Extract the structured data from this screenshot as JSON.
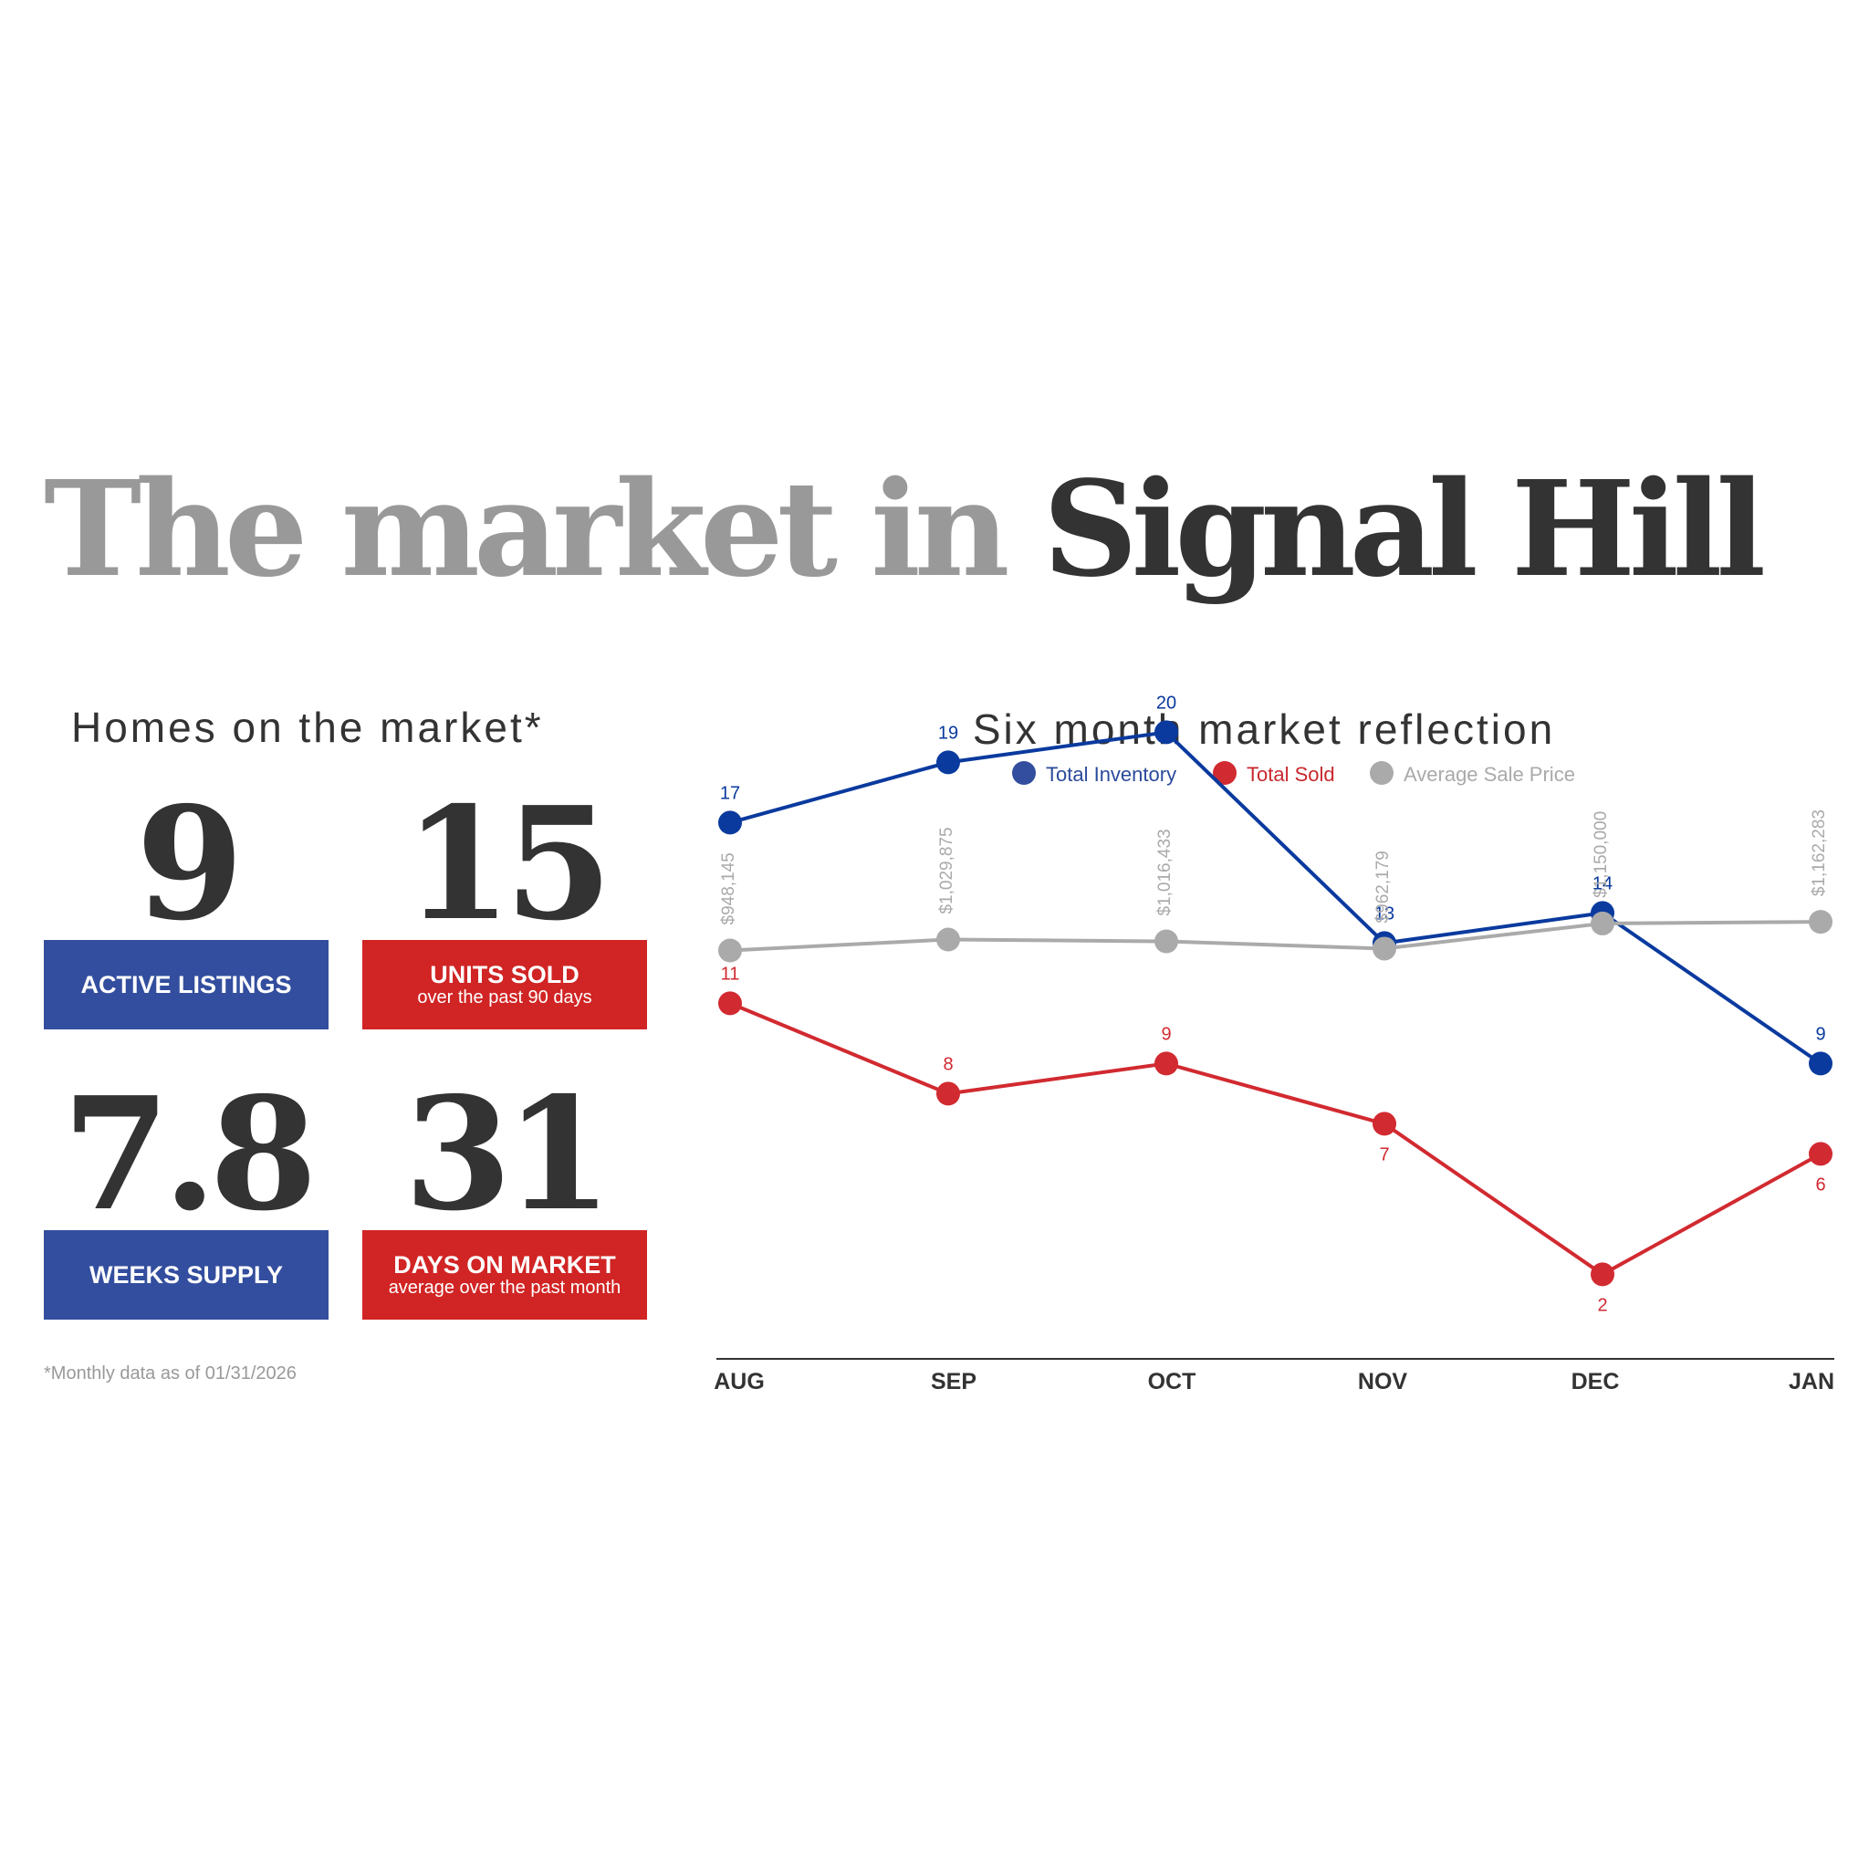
{
  "title": {
    "prefix": "The market in ",
    "place": "Signal Hill"
  },
  "homes": {
    "heading": "Homes on the market*",
    "stats": [
      {
        "value": "9",
        "label": "ACTIVE LISTINGS",
        "sub": "",
        "color": "#334e9e"
      },
      {
        "value": "15",
        "label": "UNITS SOLD",
        "sub": "over the past 90 days",
        "color": "#d12424"
      },
      {
        "value": "7.8",
        "label": "WEEKS SUPPLY",
        "sub": "",
        "color": "#334e9e"
      },
      {
        "value": "31",
        "label": "DAYS ON MARKET",
        "sub": "average over the past month",
        "color": "#d12424"
      }
    ],
    "footnote": "*Monthly data as of 01/31/2026"
  },
  "chart_data": {
    "type": "line",
    "title": "Six month market reflection",
    "categories": [
      "AUG",
      "SEP",
      "OCT",
      "NOV",
      "DEC",
      "JAN"
    ],
    "legend_position": "top",
    "grid": false,
    "series": [
      {
        "name": "Total Inventory",
        "color": "#0a3a9e",
        "values": [
          17,
          19,
          20,
          13,
          14,
          9
        ],
        "labels": [
          "17",
          "19",
          "20",
          "13",
          "14",
          "9"
        ]
      },
      {
        "name": "Total Sold",
        "color": "#d12a30",
        "values": [
          11,
          8,
          9,
          7,
          2,
          6
        ],
        "labels": [
          "11",
          "8",
          "9",
          "7",
          "2",
          "6"
        ]
      },
      {
        "name": "Average Sale Price",
        "color": "#aaaaaa",
        "values": [
          948145,
          1029875,
          1016433,
          962179,
          1150000,
          1162283
        ],
        "labels": [
          "$948,145",
          "$1,029,875",
          "$1,016,433",
          "$962,179",
          "$1,150,000",
          "$1,162,283"
        ]
      }
    ]
  }
}
